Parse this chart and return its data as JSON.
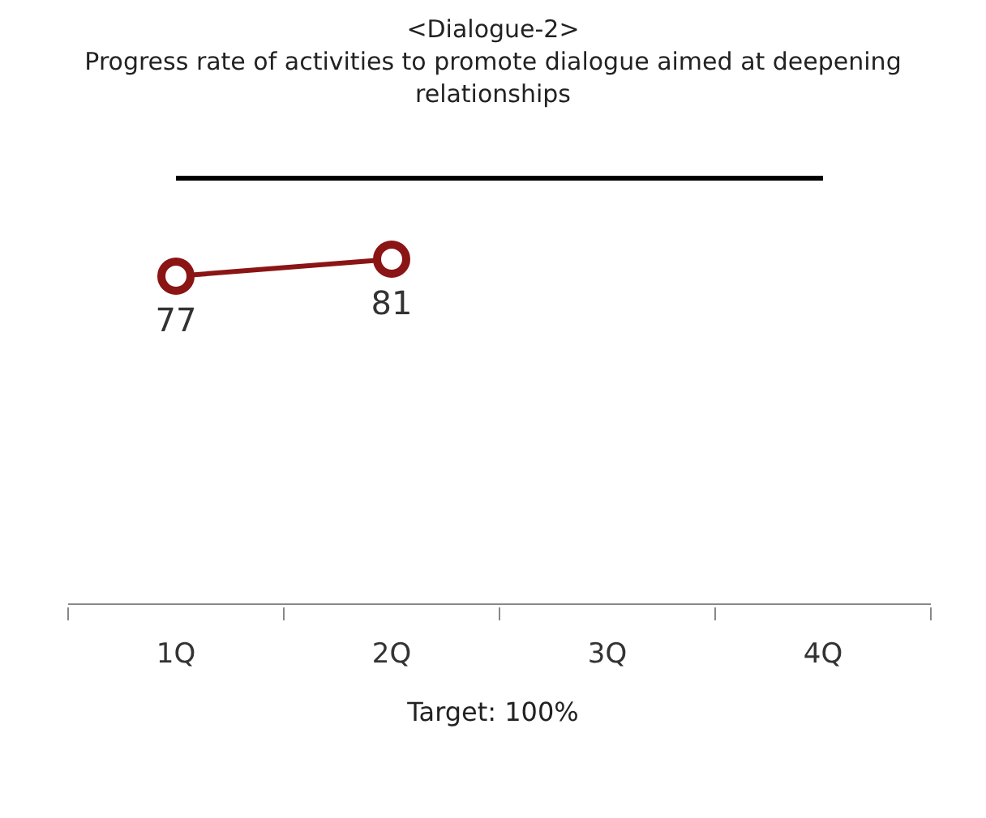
{
  "chart_data": {
    "type": "line",
    "title": "<Dialogue-2>",
    "subtitle": "Progress rate of activities to promote dialogue aimed at deepening relationships",
    "categories": [
      "1Q",
      "2Q",
      "3Q",
      "4Q"
    ],
    "series": [
      {
        "color": "#8b1414",
        "values": [
          77,
          81,
          null,
          null
        ]
      }
    ],
    "ref_lines": [
      {
        "axis": "y",
        "value": 100,
        "color": "#000000"
      }
    ],
    "marker": "circle",
    "data_labels": true,
    "annotations": [
      "Target: 100%"
    ]
  }
}
